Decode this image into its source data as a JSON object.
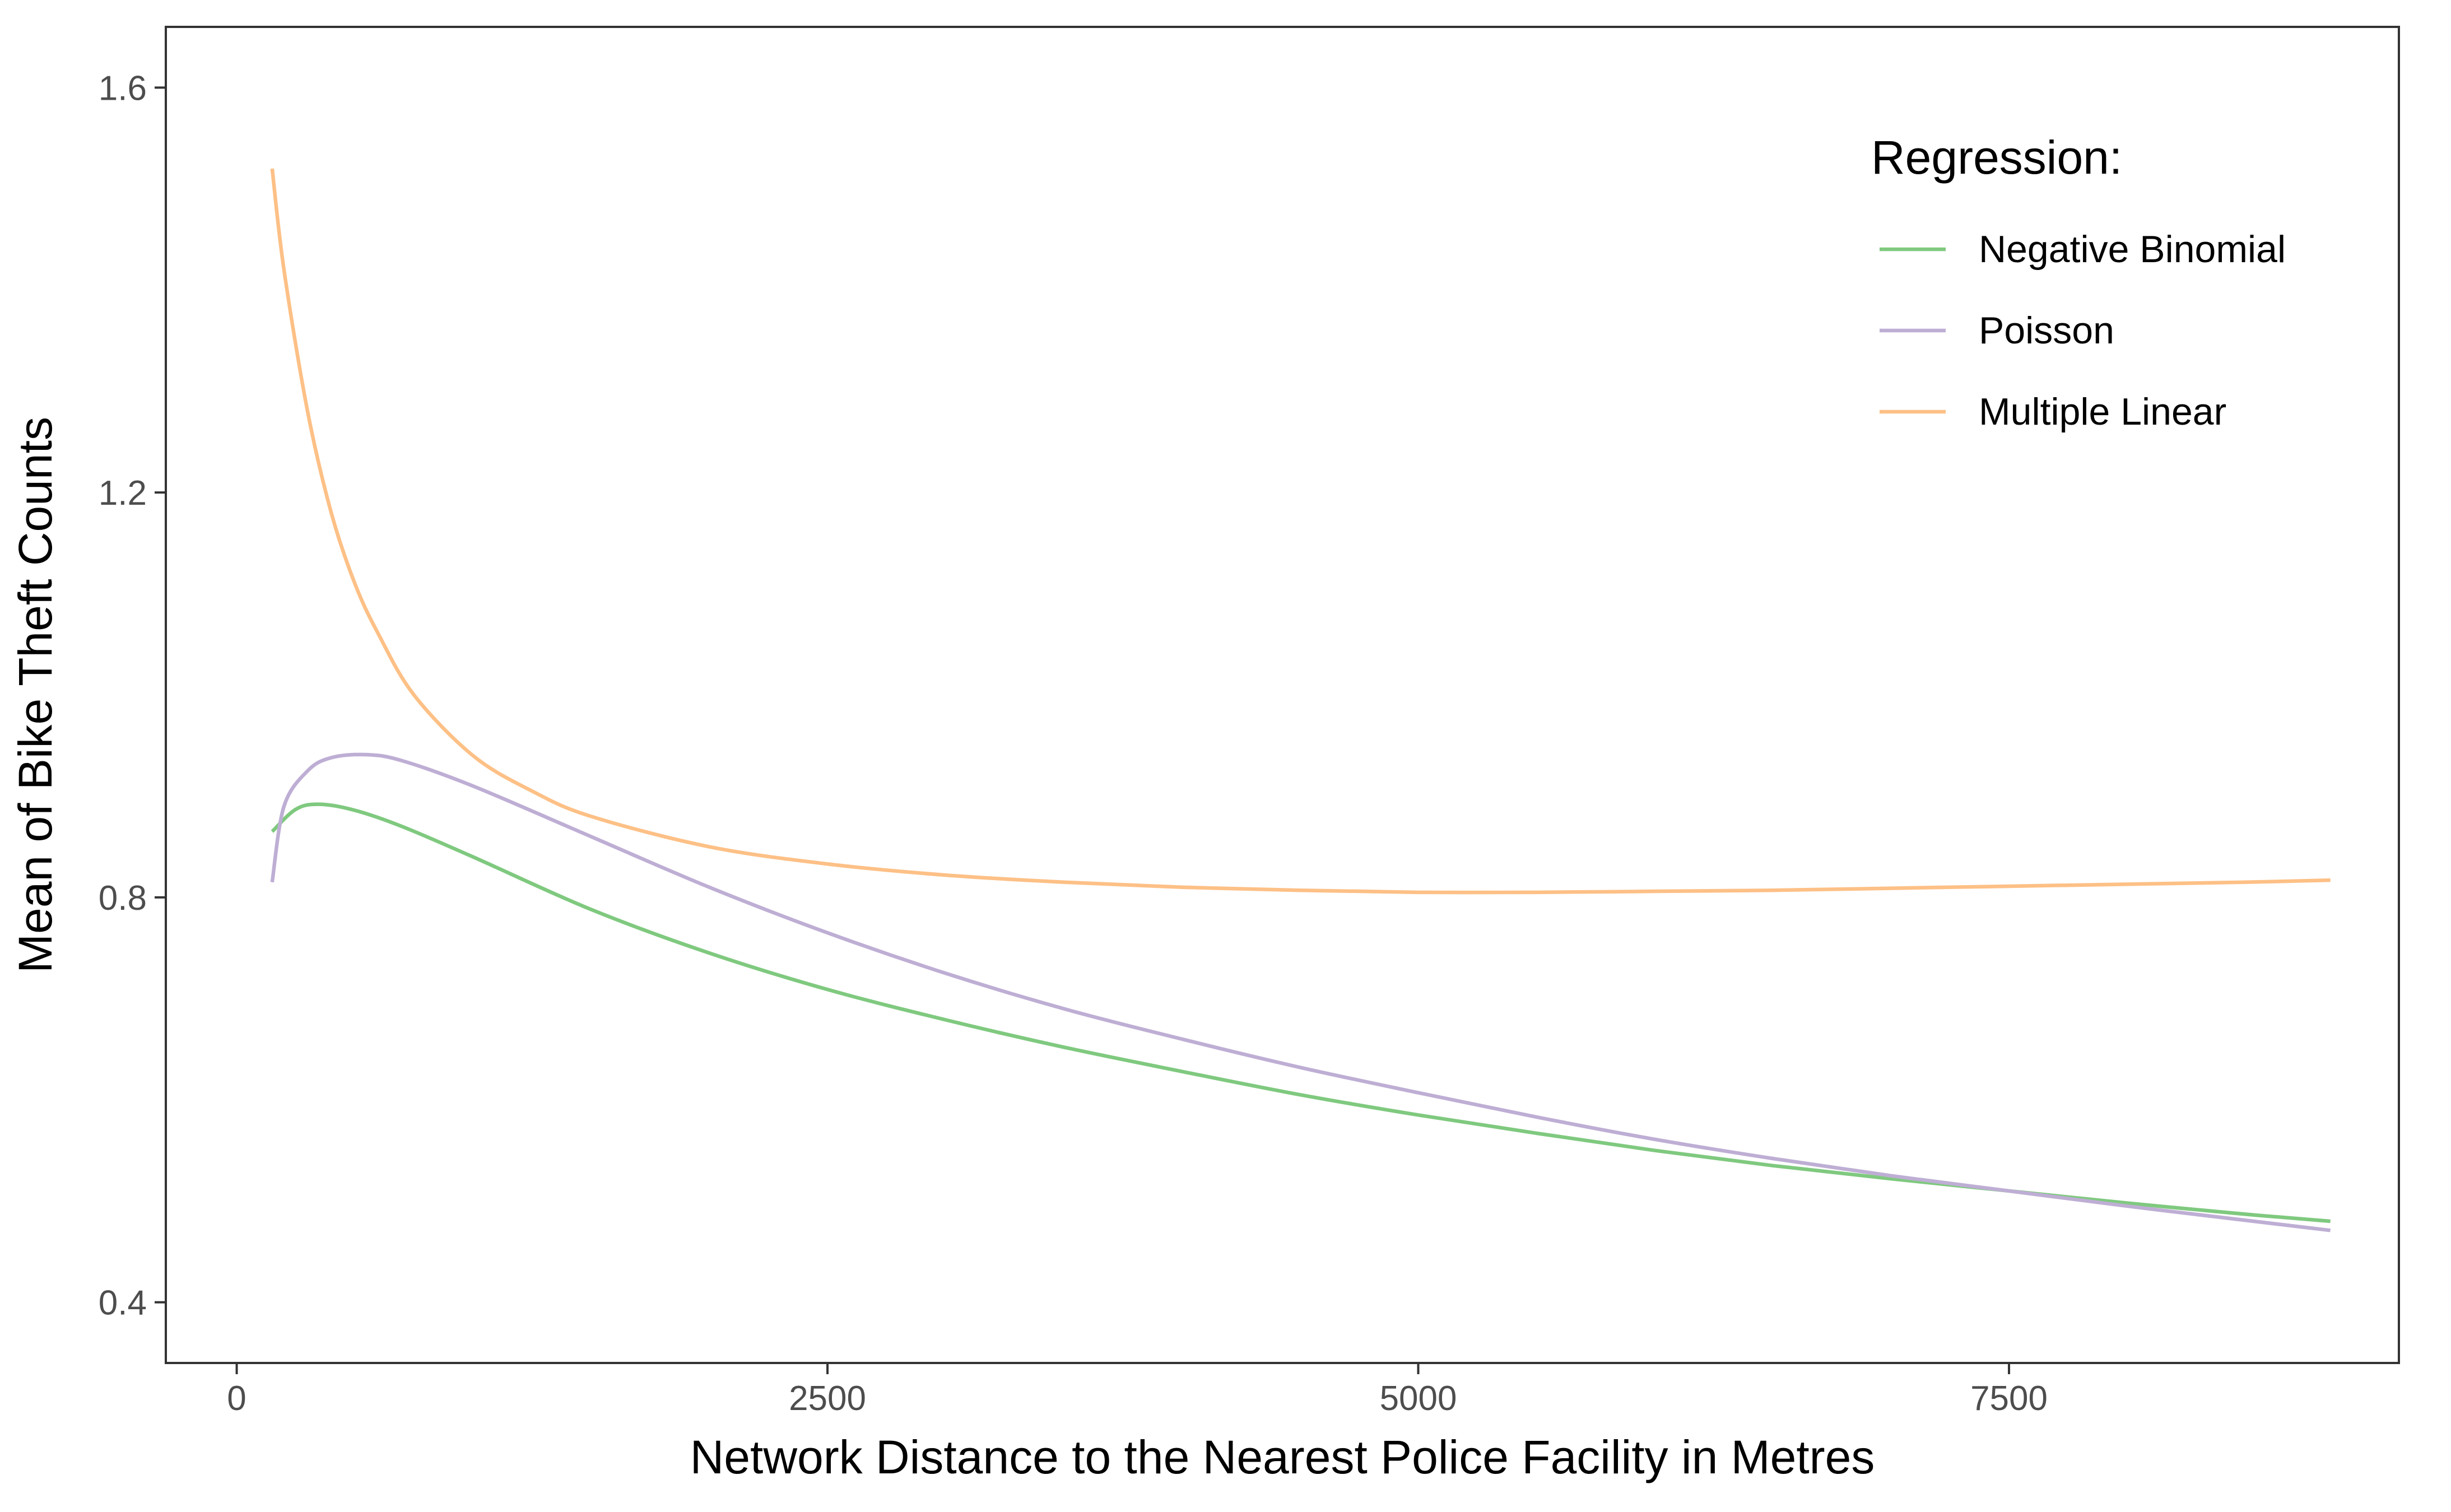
{
  "chart_data": {
    "type": "line",
    "xlabel": "Network Distance to the Nearest Police Facility in Metres",
    "ylabel": "Mean of Bike Theft Counts",
    "xlim": [
      -300,
      9150
    ],
    "ylim": [
      0.34,
      1.66
    ],
    "xticks": [
      {
        "value": 0,
        "label": "0"
      },
      {
        "value": 2500,
        "label": "2500"
      },
      {
        "value": 5000,
        "label": "5000"
      },
      {
        "value": 7500,
        "label": "7500"
      }
    ],
    "yticks": [
      {
        "value": 0.4,
        "label": "0.4"
      },
      {
        "value": 0.8,
        "label": "0.8"
      },
      {
        "value": 1.2,
        "label": "1.2"
      },
      {
        "value": 1.6,
        "label": "1.6"
      }
    ],
    "grid": false,
    "legend": {
      "title": "Regression:",
      "placement": "top-right"
    },
    "series": [
      {
        "name": "Negative Binomial",
        "color": "#7fc97f",
        "x": [
          150,
          250,
          350,
          500,
          700,
          1000,
          1500,
          2000,
          2500,
          3000,
          3500,
          4000,
          4500,
          5000,
          5500,
          6000,
          6500,
          7000,
          7500,
          8000,
          8500,
          8860
        ],
        "y": [
          0.865,
          0.887,
          0.892,
          0.886,
          0.87,
          0.84,
          0.788,
          0.745,
          0.709,
          0.679,
          0.652,
          0.628,
          0.605,
          0.585,
          0.567,
          0.55,
          0.535,
          0.522,
          0.51,
          0.498,
          0.487,
          0.48
        ]
      },
      {
        "name": "Poisson",
        "color": "#beaed4",
        "x": [
          150,
          200,
          300,
          400,
          550,
          700,
          1000,
          1500,
          2000,
          2500,
          3000,
          3500,
          4000,
          4500,
          5000,
          5500,
          6000,
          6500,
          7000,
          7500,
          8000,
          8500,
          8860
        ],
        "y": [
          0.815,
          0.89,
          0.925,
          0.938,
          0.941,
          0.935,
          0.91,
          0.86,
          0.81,
          0.765,
          0.725,
          0.69,
          0.66,
          0.632,
          0.607,
          0.583,
          0.561,
          0.542,
          0.525,
          0.51,
          0.495,
          0.481,
          0.471
        ]
      },
      {
        "name": "Multiple Linear",
        "color": "#fdc086",
        "x": [
          150,
          200,
          300,
          400,
          500,
          600,
          750,
          1000,
          1250,
          1500,
          2000,
          2500,
          3000,
          3500,
          4000,
          4500,
          5000,
          5500,
          6000,
          6500,
          7000,
          7500,
          8000,
          8500,
          8860
        ],
        "y": [
          1.52,
          1.42,
          1.28,
          1.18,
          1.11,
          1.06,
          1.0,
          0.94,
          0.905,
          0.88,
          0.85,
          0.833,
          0.822,
          0.815,
          0.81,
          0.807,
          0.805,
          0.805,
          0.806,
          0.807,
          0.809,
          0.811,
          0.813,
          0.815,
          0.817
        ]
      }
    ]
  }
}
